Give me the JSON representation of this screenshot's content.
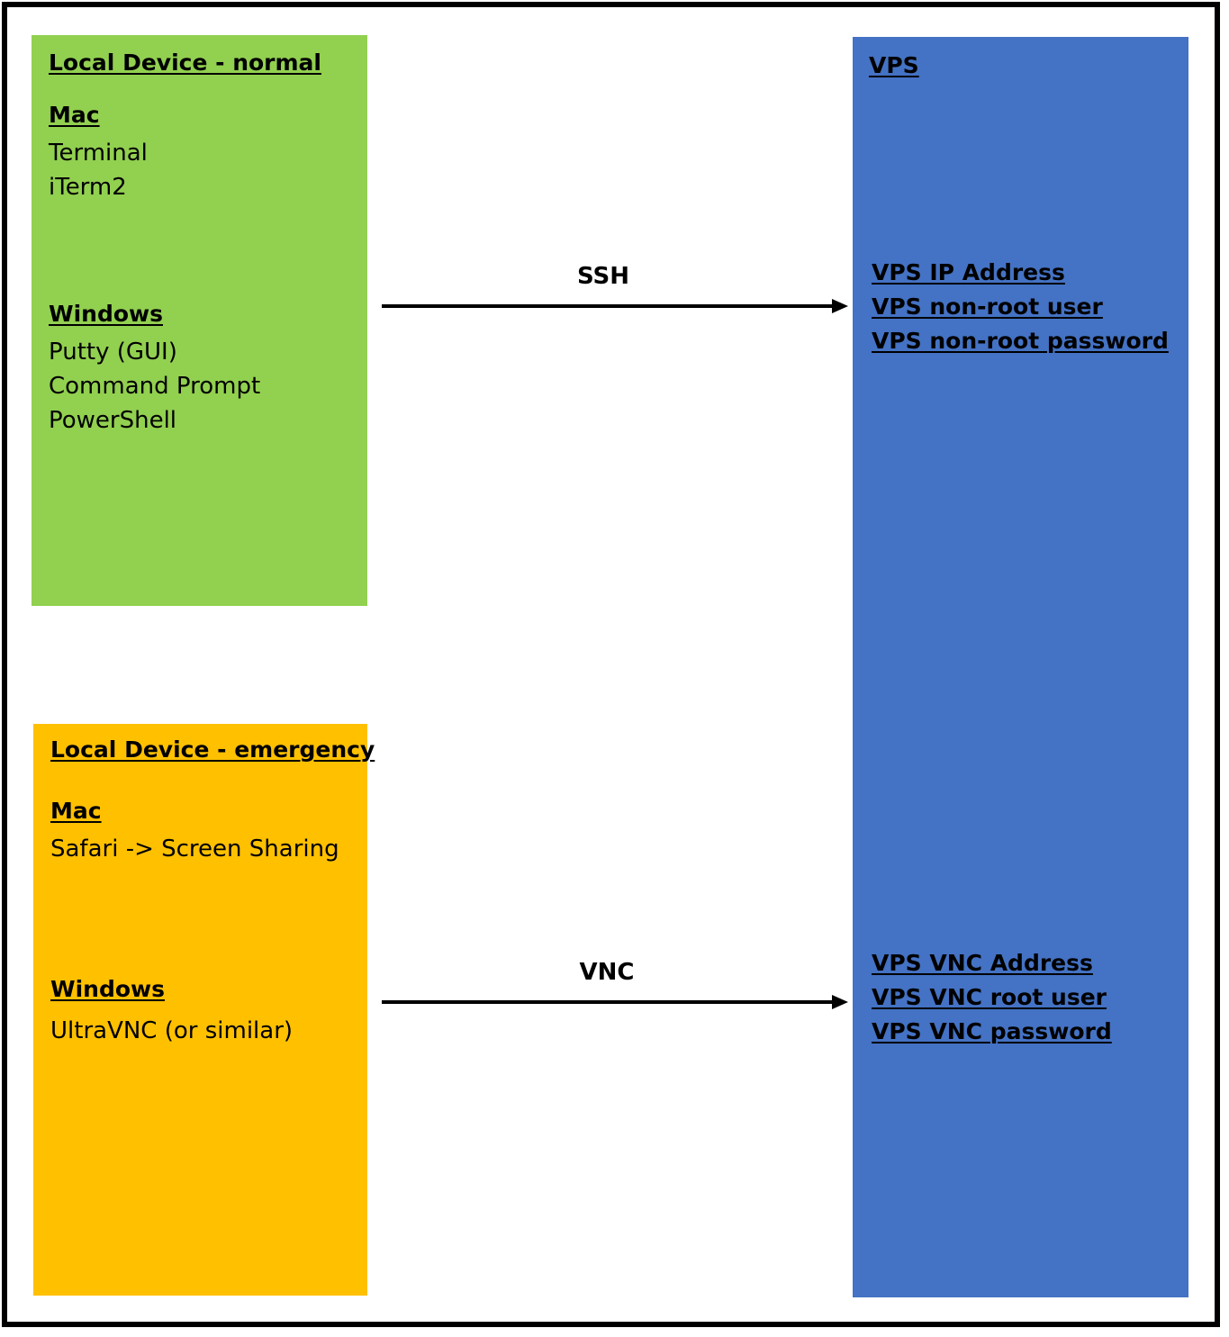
{
  "local_normal": {
    "title": "Local Device - normal",
    "mac_heading": "Mac",
    "mac_items": [
      "Terminal",
      "iTerm2"
    ],
    "windows_heading": "Windows",
    "windows_items": [
      "Putty (GUI)",
      "Command Prompt",
      "PowerShell"
    ],
    "color": "#92d050"
  },
  "local_emergency": {
    "title": "Local Device - emergency",
    "mac_heading": "Mac",
    "mac_items": [
      "Safari -> Screen Sharing"
    ],
    "windows_heading": "Windows",
    "windows_items": [
      "UltraVNC (or similar)"
    ],
    "color": "#ffc000"
  },
  "vps": {
    "title": "VPS",
    "ssh_items": [
      "VPS IP Address",
      "VPS non-root user",
      "VPS non-root password"
    ],
    "vnc_items": [
      "VPS VNC Address",
      "VPS VNC root user",
      "VPS VNC password"
    ],
    "color": "#4472c4"
  },
  "connections": {
    "ssh_label": "SSH",
    "vnc_label": "VNC"
  }
}
